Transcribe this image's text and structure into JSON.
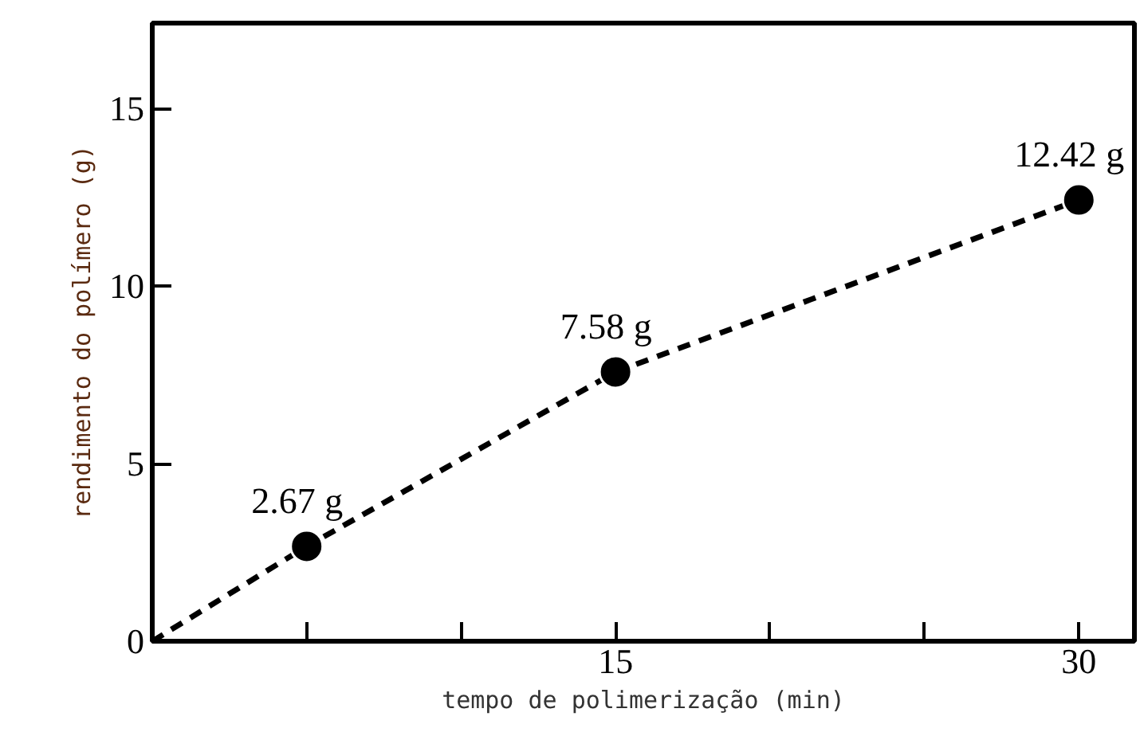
{
  "chart_data": {
    "type": "line",
    "xlabel": "tempo de polimerização (min)",
    "ylabel": "rendimento do polímero (g)",
    "xlim": [
      0,
      31.8
    ],
    "ylim": [
      0,
      17.4
    ],
    "xticks": [
      {
        "value": 5,
        "label": null
      },
      {
        "value": 10,
        "label": null
      },
      15,
      {
        "value": 20,
        "label": null
      },
      {
        "value": 25,
        "label": null
      },
      30
    ],
    "yticks": [
      0,
      5,
      10,
      15
    ],
    "grid": false,
    "line_style": "dashed",
    "series": [
      {
        "color": "#000000",
        "x": [
          0,
          5,
          15,
          30
        ],
        "values": [
          0,
          2.67,
          7.58,
          12.42
        ],
        "marker": "none"
      },
      {
        "type": "scatter",
        "color": "#000000",
        "x": [
          5,
          15,
          30
        ],
        "values": [
          2.67,
          7.58,
          12.42
        ],
        "marker": "circle",
        "value_labels": [
          "2.67 g",
          "7.58 g",
          "12.42 g"
        ]
      }
    ]
  }
}
